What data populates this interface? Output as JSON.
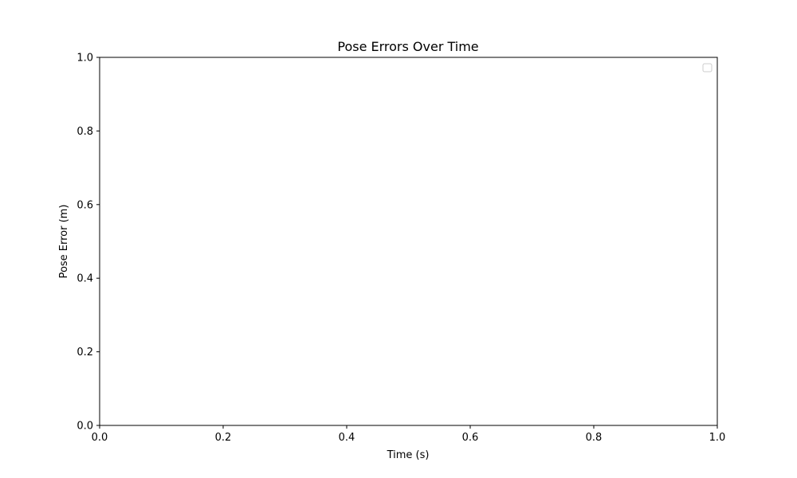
{
  "chart_data": {
    "type": "line",
    "title": "Pose Errors Over Time",
    "xlabel": "Time (s)",
    "ylabel": "Pose Error (m)",
    "xlim": [
      0.0,
      1.0
    ],
    "ylim": [
      0.0,
      1.0
    ],
    "xticks": [
      "0.0",
      "0.2",
      "0.4",
      "0.6",
      "0.8",
      "1.0"
    ],
    "yticks": [
      "0.0",
      "0.2",
      "0.4",
      "0.6",
      "0.8",
      "1.0"
    ],
    "series": [],
    "grid": false,
    "legend": {
      "placement": "top-right",
      "entries": []
    },
    "colors": {
      "axis": "#000000",
      "background": "#ffffff",
      "legend_border": "#cccccc"
    }
  }
}
